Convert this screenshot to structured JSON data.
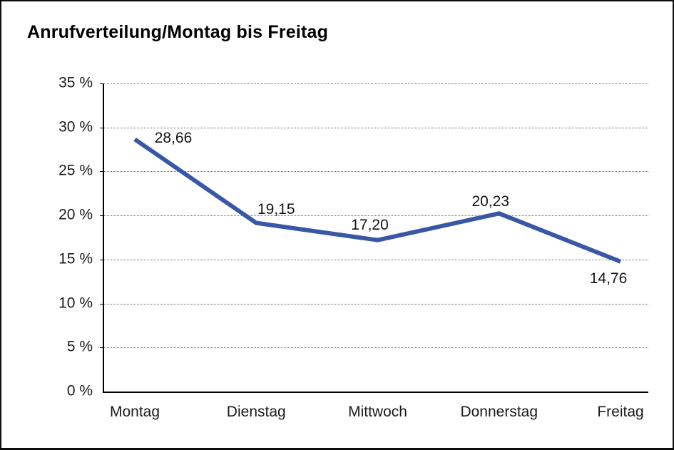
{
  "chart_data": {
    "type": "line",
    "title": "Anrufverteilung/Montag bis Freitag",
    "categories": [
      "Montag",
      "Dienstag",
      "Mittwoch",
      "Donnerstag",
      "Freitag"
    ],
    "values": [
      28.66,
      19.15,
      17.2,
      20.23,
      14.76
    ],
    "value_labels": [
      "28,66",
      "19,15",
      "17,20",
      "20,23",
      "14,76"
    ],
    "xlabel": "",
    "ylabel": "",
    "ylim": [
      0,
      35
    ],
    "y_tick_step": 5,
    "y_ticks": [
      {
        "value": 35,
        "label": "35 %"
      },
      {
        "value": 30,
        "label": "30 %"
      },
      {
        "value": 25,
        "label": "25 %"
      },
      {
        "value": 20,
        "label": "20 %"
      },
      {
        "value": 15,
        "label": "15 %"
      },
      {
        "value": 10,
        "label": "10 %"
      },
      {
        "value": 5,
        "label": "5 %"
      },
      {
        "value": 0,
        "label": "0 %"
      }
    ],
    "grid": "horizontal-dotted",
    "legend": "none",
    "line_color": "#3A57A6",
    "axis_color": "#000000",
    "grid_color": "#6b6b6b",
    "text_color": "#1a1a1a"
  }
}
